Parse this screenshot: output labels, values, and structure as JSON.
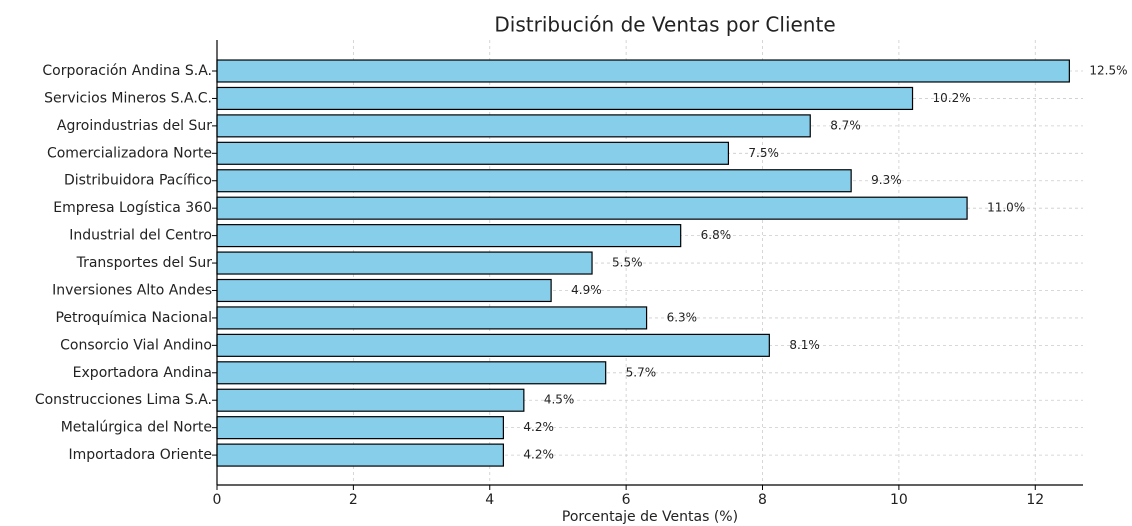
{
  "chart_data": {
    "type": "barh",
    "title": "Distribución de Ventas por Cliente",
    "xlabel": "Porcentaje de Ventas (%)",
    "categories": [
      "Corporación Andina S.A.",
      "Servicios Mineros S.A.C.",
      "Agroindustrias del Sur",
      "Comercializadora Norte",
      "Distribuidora Pacífico",
      "Empresa Logística 360",
      "Industrial del Centro",
      "Transportes del Sur",
      "Inversiones Alto Andes",
      "Petroquímica Nacional",
      "Consorcio Vial Andino",
      "Exportadora Andina",
      "Construcciones Lima S.A.",
      "Metalúrgica del Norte",
      "Importadora Oriente"
    ],
    "values": [
      12.5,
      10.2,
      8.7,
      7.5,
      9.3,
      11.0,
      6.8,
      5.5,
      4.9,
      6.3,
      8.1,
      5.7,
      4.5,
      4.2,
      4.2
    ],
    "value_labels": [
      "12.5%",
      "10.2%",
      "8.7%",
      "7.5%",
      "9.3%",
      "11.0%",
      "6.8%",
      "5.5%",
      "4.9%",
      "6.3%",
      "8.1%",
      "5.7%",
      "4.5%",
      "4.2%",
      "4.2%"
    ],
    "color": "#87ceeb",
    "xlim": [
      0,
      12.7
    ],
    "xticks": [
      0,
      2,
      4,
      6,
      8,
      10,
      12
    ],
    "grid": true
  }
}
